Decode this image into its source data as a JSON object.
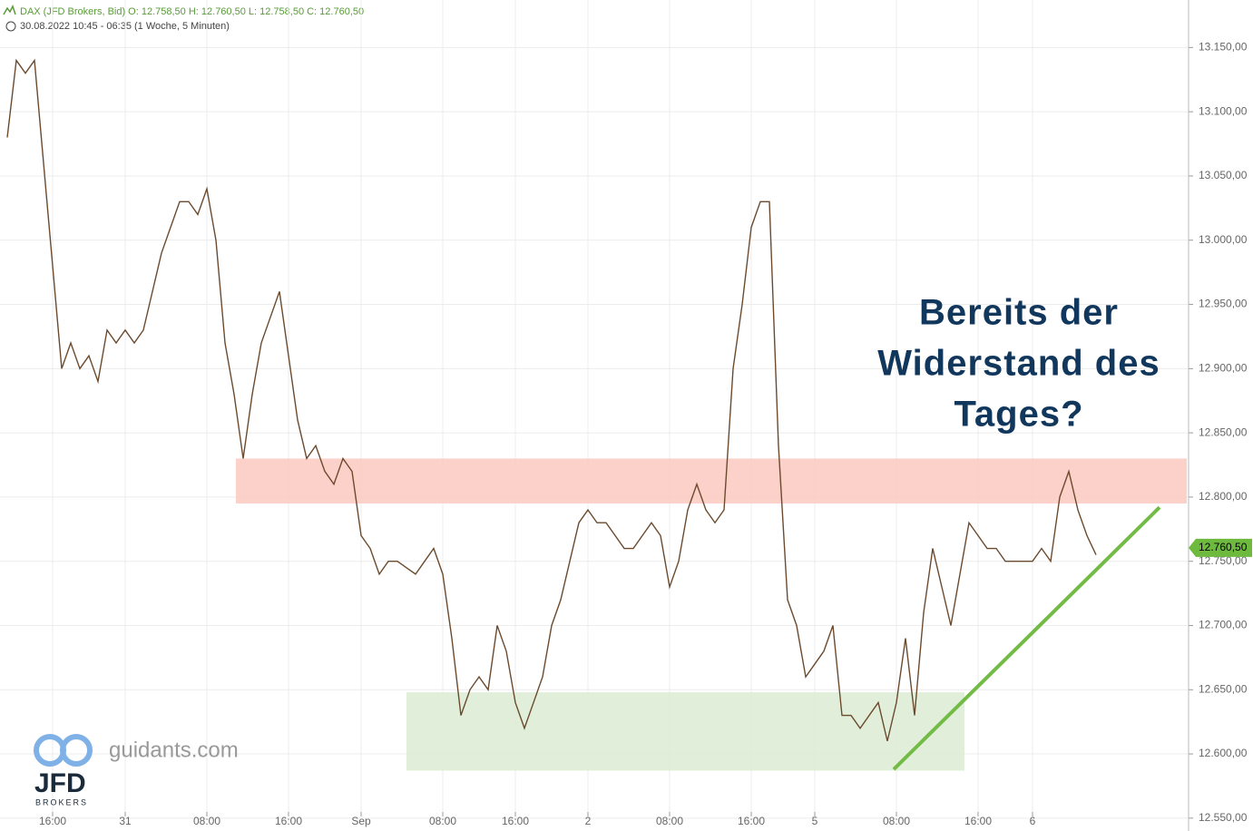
{
  "chart_data": {
    "type": "line",
    "title": "DAX (JFD Brokers, Bid)  O: 12.758,50  H: 12.760,50  L: 12.758,50  C: 12.760,50",
    "subtitle": "30.08.2022 10:45 - 06:35   (1 Woche, 5 Minuten)",
    "annotation": [
      "Bereits der",
      "Widerstand des",
      "Tages?"
    ],
    "watermark": {
      "site": "guidants.com",
      "logo": "JFD",
      "logo_sub": "BROKERS"
    },
    "categories": [
      null,
      null,
      null,
      null,
      null,
      "16:00",
      null,
      null,
      null,
      null,
      null,
      null,
      null,
      "31",
      null,
      null,
      null,
      null,
      null,
      null,
      null,
      null,
      "08:00",
      null,
      null,
      null,
      null,
      null,
      null,
      null,
      null,
      "16:00",
      null,
      null,
      null,
      null,
      null,
      null,
      null,
      "Sep",
      null,
      null,
      null,
      null,
      null,
      null,
      null,
      null,
      "08:00",
      null,
      null,
      null,
      null,
      null,
      null,
      null,
      "16:00",
      null,
      null,
      null,
      null,
      null,
      null,
      null,
      "2",
      null,
      null,
      null,
      null,
      null,
      null,
      null,
      null,
      "08:00",
      null,
      null,
      null,
      null,
      null,
      null,
      null,
      null,
      "16:00",
      null,
      null,
      null,
      null,
      null,
      null,
      "5",
      null,
      null,
      null,
      null,
      null,
      null,
      null,
      null,
      "08:00",
      null,
      null,
      null,
      null,
      null,
      null,
      null,
      null,
      "16:00",
      null,
      null,
      null,
      null,
      null,
      "6",
      null,
      null,
      null,
      null,
      null,
      null,
      null
    ],
    "series": [
      {
        "name": "DAX",
        "color": "#6b4a2e",
        "values": [
          13080,
          13140,
          13130,
          13140,
          13060,
          12980,
          12900,
          12920,
          12900,
          12910,
          12890,
          12930,
          12920,
          12930,
          12920,
          12930,
          12960,
          12990,
          13010,
          13030,
          13030,
          13020,
          13040,
          13000,
          12920,
          12880,
          12830,
          12880,
          12920,
          12940,
          12960,
          12910,
          12860,
          12830,
          12840,
          12820,
          12810,
          12830,
          12820,
          12770,
          12760,
          12740,
          12750,
          12750,
          12745,
          12740,
          12750,
          12760,
          12740,
          12690,
          12630,
          12650,
          12660,
          12650,
          12700,
          12680,
          12640,
          12620,
          12640,
          12660,
          12700,
          12720,
          12750,
          12780,
          12790,
          12780,
          12780,
          12770,
          12760,
          12760,
          12770,
          12780,
          12770,
          12730,
          12750,
          12790,
          12810,
          12790,
          12780,
          12790,
          12900,
          12950,
          13010,
          13030,
          13030,
          12840,
          12720,
          12700,
          12660,
          12670,
          12680,
          12700,
          12630,
          12630,
          12620,
          12630,
          12640,
          12610,
          12640,
          12690,
          12630,
          12710,
          12760,
          12730,
          12700,
          12740,
          12780,
          12770,
          12760,
          12760,
          12750,
          12750,
          12750,
          12750,
          12760,
          12750,
          12800,
          12820,
          12790,
          12770,
          12755
        ]
      }
    ],
    "ylim": [
      12540,
      13187
    ],
    "yticks": [
      {
        "value": 12550,
        "label": "12.550,00"
      },
      {
        "value": 12600,
        "label": "12.600,00"
      },
      {
        "value": 12650,
        "label": "12.650,00"
      },
      {
        "value": 12700,
        "label": "12.700,00"
      },
      {
        "value": 12750,
        "label": "12.750,00"
      },
      {
        "value": 12800,
        "label": "12.800,00"
      },
      {
        "value": 12850,
        "label": "12.850,00"
      },
      {
        "value": 12900,
        "label": "12.900,00"
      },
      {
        "value": 12950,
        "label": "12.950,00"
      },
      {
        "value": 13000,
        "label": "13.000,00"
      },
      {
        "value": 13050,
        "label": "13.050,00"
      },
      {
        "value": 13100,
        "label": "13.100,00"
      },
      {
        "value": 13150,
        "label": "13.150,00"
      }
    ],
    "last_price": {
      "value": 12760.5,
      "label": "12.760,50",
      "color": "#6dba3f"
    },
    "zones": [
      {
        "y0": 12795,
        "y1": 12830,
        "from": 25.2,
        "to": 130,
        "color": "#fcc9bf"
      },
      {
        "y0": 12587,
        "y1": 12648,
        "from": 44,
        "to": 105.5,
        "color": "#dcecd3"
      }
    ],
    "trendline": {
      "from": [
        97.7,
        12588
      ],
      "to": [
        127,
        12792
      ],
      "color": "#72bb45"
    },
    "grid": true
  }
}
